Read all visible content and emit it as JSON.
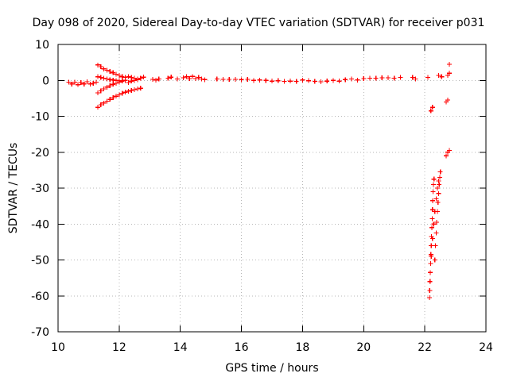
{
  "chart_data": {
    "type": "scatter",
    "title": "Day 098 of 2020, Sidereal Day-to-day VTEC variation (SDTVAR) for receiver p031",
    "xlabel": "GPS time / hours",
    "ylabel": "SDTVAR / TECUs",
    "xlim": [
      10,
      24
    ],
    "ylim": [
      -70,
      10
    ],
    "xticks": [
      10,
      12,
      14,
      16,
      18,
      20,
      22,
      24
    ],
    "yticks": [
      10,
      0,
      -10,
      -20,
      -30,
      -40,
      -50,
      -60,
      -70
    ],
    "xtick_labels": [
      "10",
      "12",
      "14",
      "16",
      "18",
      "20",
      "22",
      "24"
    ],
    "ytick_labels": [
      "10",
      "0",
      "-10",
      "-20",
      "-30",
      "-40",
      "-50",
      "-60",
      "-70"
    ],
    "grid": true,
    "marker": "plus",
    "series": [
      {
        "name": "SDTVAR",
        "color": "#ff0000",
        "points": [
          [
            10.35,
            -0.5
          ],
          [
            10.45,
            -1.0
          ],
          [
            10.55,
            -0.5
          ],
          [
            10.65,
            -1.2
          ],
          [
            10.75,
            -0.6
          ],
          [
            10.85,
            -1.0
          ],
          [
            10.95,
            -0.4
          ],
          [
            11.05,
            -1.0
          ],
          [
            11.15,
            -0.8
          ],
          [
            11.25,
            -0.5
          ],
          [
            11.3,
            4.3
          ],
          [
            11.4,
            3.8
          ],
          [
            11.5,
            3.2
          ],
          [
            11.6,
            2.8
          ],
          [
            11.7,
            2.5
          ],
          [
            11.8,
            2.1
          ],
          [
            11.9,
            1.7
          ],
          [
            12.0,
            1.4
          ],
          [
            12.1,
            1.0
          ],
          [
            12.2,
            0.8
          ],
          [
            11.3,
            -7.5
          ],
          [
            11.4,
            -6.8
          ],
          [
            11.5,
            -6.3
          ],
          [
            11.6,
            -5.8
          ],
          [
            11.7,
            -5.3
          ],
          [
            11.8,
            -4.8
          ],
          [
            11.9,
            -4.4
          ],
          [
            12.0,
            -4.0
          ],
          [
            12.1,
            -3.6
          ],
          [
            12.2,
            -3.3
          ],
          [
            12.3,
            -3.0
          ],
          [
            12.4,
            -2.8
          ],
          [
            12.5,
            -2.6
          ],
          [
            12.6,
            -2.4
          ],
          [
            12.7,
            -2.2
          ],
          [
            11.3,
            -3.5
          ],
          [
            11.4,
            -2.9
          ],
          [
            11.5,
            -2.4
          ],
          [
            11.6,
            -1.9
          ],
          [
            11.7,
            -1.5
          ],
          [
            11.8,
            -1.1
          ],
          [
            11.9,
            -0.8
          ],
          [
            12.0,
            -0.5
          ],
          [
            12.1,
            -0.2
          ],
          [
            12.2,
            0.0
          ],
          [
            11.3,
            1.0
          ],
          [
            11.4,
            0.8
          ],
          [
            11.5,
            0.6
          ],
          [
            11.6,
            0.4
          ],
          [
            11.7,
            0.2
          ],
          [
            11.8,
            0.1
          ],
          [
            11.9,
            0.0
          ],
          [
            12.0,
            -0.1
          ],
          [
            12.1,
            -0.1
          ],
          [
            12.2,
            0.0
          ],
          [
            12.3,
            1.0
          ],
          [
            12.4,
            0.8
          ],
          [
            12.5,
            0.6
          ],
          [
            12.6,
            0.4
          ],
          [
            12.7,
            0.6
          ],
          [
            12.8,
            0.9
          ],
          [
            12.3,
            -0.6
          ],
          [
            12.4,
            -0.2
          ],
          [
            12.5,
            0.0
          ],
          [
            12.6,
            0.2
          ],
          [
            13.1,
            0.3
          ],
          [
            13.2,
            0.1
          ],
          [
            13.3,
            0.4
          ],
          [
            13.6,
            0.6
          ],
          [
            13.7,
            0.9
          ],
          [
            13.9,
            0.4
          ],
          [
            14.1,
            0.7
          ],
          [
            14.2,
            1.0
          ],
          [
            14.3,
            0.5
          ],
          [
            14.4,
            1.1
          ],
          [
            14.5,
            0.5
          ],
          [
            14.6,
            0.8
          ],
          [
            14.7,
            0.4
          ],
          [
            14.8,
            0.2
          ],
          [
            15.2,
            0.4
          ],
          [
            15.4,
            0.3
          ],
          [
            15.6,
            0.3
          ],
          [
            15.8,
            0.3
          ],
          [
            16.0,
            0.2
          ],
          [
            16.2,
            0.3
          ],
          [
            16.4,
            0.0
          ],
          [
            16.6,
            0.1
          ],
          [
            16.8,
            0.0
          ],
          [
            17.0,
            -0.2
          ],
          [
            17.2,
            -0.1
          ],
          [
            17.4,
            -0.3
          ],
          [
            17.6,
            -0.2
          ],
          [
            17.8,
            -0.3
          ],
          [
            18.0,
            0.1
          ],
          [
            18.2,
            -0.1
          ],
          [
            18.4,
            -0.3
          ],
          [
            18.6,
            -0.4
          ],
          [
            18.8,
            -0.2
          ],
          [
            19.0,
            0.0
          ],
          [
            19.2,
            -0.2
          ],
          [
            19.4,
            0.2
          ],
          [
            19.6,
            0.4
          ],
          [
            19.8,
            0.1
          ],
          [
            20.0,
            0.5
          ],
          [
            20.2,
            0.6
          ],
          [
            20.4,
            0.6
          ],
          [
            20.6,
            0.7
          ],
          [
            20.8,
            0.7
          ],
          [
            21.0,
            0.6
          ],
          [
            21.2,
            0.8
          ],
          [
            21.6,
            0.8
          ],
          [
            21.7,
            0.4
          ],
          [
            22.1,
            0.8
          ],
          [
            22.2,
            -8.5
          ],
          [
            22.25,
            -7.5
          ],
          [
            22.45,
            1.4
          ],
          [
            22.55,
            1.0
          ],
          [
            22.7,
            -6.0
          ],
          [
            22.75,
            -5.5
          ],
          [
            22.75,
            1.4
          ],
          [
            22.8,
            2.0
          ],
          [
            22.8,
            4.5
          ],
          [
            22.7,
            -21.0
          ],
          [
            22.75,
            -20.0
          ],
          [
            22.8,
            -19.5
          ],
          [
            22.15,
            -60.5
          ],
          [
            22.16,
            -58.5
          ],
          [
            22.17,
            -56.0
          ],
          [
            22.18,
            -53.5
          ],
          [
            22.19,
            -51.0
          ],
          [
            22.2,
            -48.5
          ],
          [
            22.21,
            -46.0
          ],
          [
            22.22,
            -43.5
          ],
          [
            22.23,
            -41.0
          ],
          [
            22.24,
            -38.5
          ],
          [
            22.25,
            -36.0
          ],
          [
            22.26,
            -33.5
          ],
          [
            22.27,
            -31.0
          ],
          [
            22.28,
            -29.0
          ],
          [
            22.3,
            -27.5
          ],
          [
            22.33,
            -50.0
          ],
          [
            22.35,
            -46.0
          ],
          [
            22.37,
            -42.5
          ],
          [
            22.39,
            -39.5
          ],
          [
            22.41,
            -36.5
          ],
          [
            22.43,
            -34.0
          ],
          [
            22.45,
            -31.5
          ],
          [
            22.47,
            -29.0
          ],
          [
            22.49,
            -27.0
          ],
          [
            22.51,
            -25.5
          ],
          [
            22.21,
            -49.0
          ],
          [
            22.25,
            -44.0
          ],
          [
            22.29,
            -40.0
          ],
          [
            22.33,
            -36.5
          ],
          [
            22.37,
            -33.0
          ],
          [
            22.41,
            -30.0
          ],
          [
            22.45,
            -28.0
          ]
        ]
      }
    ]
  }
}
